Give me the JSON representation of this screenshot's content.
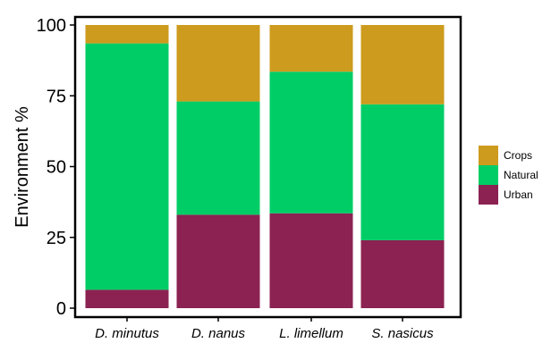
{
  "chart_data": {
    "type": "bar",
    "stacked": true,
    "percent": true,
    "categories": [
      "D. minutus",
      "D. nanus",
      "L. limellum",
      "S. nasicus"
    ],
    "series": [
      {
        "name": "Urban",
        "color": "#8b2252",
        "values": [
          6.5,
          33,
          33.5,
          24
        ]
      },
      {
        "name": "Natural",
        "color": "#00cd66",
        "values": [
          87,
          40,
          50,
          48
        ]
      },
      {
        "name": "Crops",
        "color": "#cd9b1d",
        "values": [
          6.5,
          27,
          16.5,
          28
        ]
      }
    ],
    "legend_order": [
      "Crops",
      "Natural",
      "Urban"
    ],
    "legend_position": "right",
    "ylabel": "Environment %",
    "xlabel": "",
    "ylim": [
      0,
      100
    ],
    "yticks": [
      0,
      25,
      50,
      75,
      100
    ],
    "grid": false
  }
}
